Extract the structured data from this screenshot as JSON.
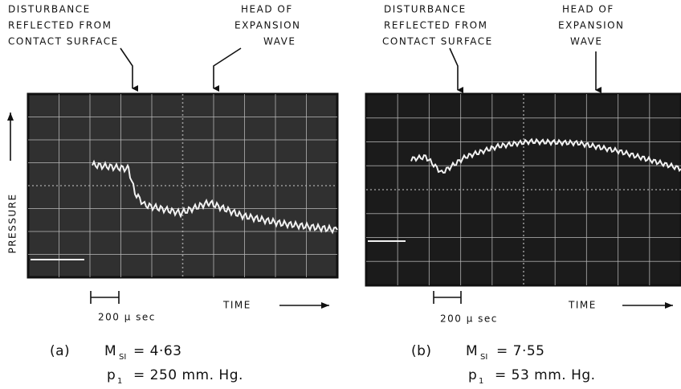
{
  "panels": [
    {
      "disturbance_label": [
        "DISTURBANCE",
        "REFLECTED FROM",
        "CONTACT SURFACE"
      ],
      "expansion_label": [
        "HEAD OF",
        "EXPANSION",
        "WAVE"
      ],
      "y_axis_label": "PRESSURE",
      "scale_label": "200 μ sec",
      "x_axis_label": "TIME",
      "tag": "(a)",
      "mach": {
        "symbol": "M",
        "subscript": "SI",
        "value": "= 4·63"
      },
      "pressure": {
        "symbol": "p",
        "subscript": "1",
        "value": "= 250 mm. Hg."
      }
    },
    {
      "disturbance_label": [
        "DISTURBANCE",
        "REFLECTED FROM",
        "CONTACT SURFACE"
      ],
      "expansion_label": [
        "HEAD OF",
        "EXPANSION",
        "WAVE"
      ],
      "scale_label": "200 μ sec",
      "x_axis_label": "TIME",
      "tag": "(b)",
      "mach": {
        "symbol": "M",
        "subscript": "SI",
        "value": "= 7·55"
      },
      "pressure": {
        "symbol": "p",
        "subscript": "1",
        "value": "= 53 mm. Hg."
      }
    }
  ]
}
